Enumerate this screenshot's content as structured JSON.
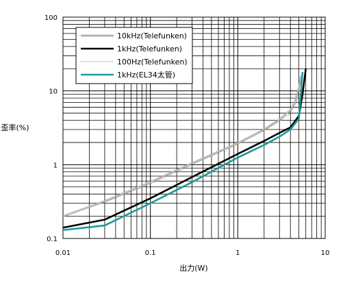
{
  "chart_data": {
    "type": "line",
    "xlabel": "出力(W)",
    "ylabel": "歪率(%)",
    "x_scale": "log",
    "y_scale": "log",
    "xlim": [
      0.01,
      10
    ],
    "ylim": [
      0.1,
      100
    ],
    "x_ticks": [
      "0.01",
      "0.1",
      "1",
      "10"
    ],
    "y_ticks": [
      "0.1",
      "1",
      "10",
      "100"
    ],
    "grid": true,
    "legend_position": "top-left",
    "series": [
      {
        "name": "10kHz(Telefunken)",
        "color": "#808080",
        "style": "double-thin",
        "x": [
          0.01,
          0.03,
          0.1,
          0.3,
          1,
          2,
          3,
          4,
          4.5,
          5,
          5.3
        ],
        "y": [
          0.2,
          0.32,
          0.58,
          1.05,
          1.95,
          3.0,
          4.1,
          5.5,
          7.0,
          11.0,
          16.0
        ]
      },
      {
        "name": "1kHz(Telefunken)",
        "color": "#000000",
        "style": "thick",
        "x": [
          0.01,
          0.03,
          0.1,
          0.3,
          1,
          2,
          3,
          4,
          5,
          5.5,
          6.0
        ],
        "y": [
          0.14,
          0.18,
          0.35,
          0.68,
          1.4,
          2.1,
          2.7,
          3.2,
          4.6,
          9.0,
          20.0
        ]
      },
      {
        "name": "100Hz(Telefunken)",
        "color": "#808080",
        "style": "dotted",
        "x": [
          0.01,
          0.03,
          0.1,
          0.3,
          1,
          2,
          3,
          4,
          4.8,
          5.2
        ],
        "y": [
          0.2,
          0.31,
          0.55,
          1.0,
          1.9,
          2.9,
          3.9,
          5.0,
          7.5,
          13.0
        ]
      },
      {
        "name": "1kHz(EL34太管)",
        "color": "#1a9a9a",
        "style": "thick",
        "x": [
          0.01,
          0.03,
          0.1,
          0.3,
          1,
          2,
          3,
          4,
          5,
          5.5
        ],
        "y": [
          0.13,
          0.15,
          0.3,
          0.58,
          1.25,
          1.85,
          2.4,
          3.0,
          4.2,
          18.0
        ]
      }
    ]
  }
}
